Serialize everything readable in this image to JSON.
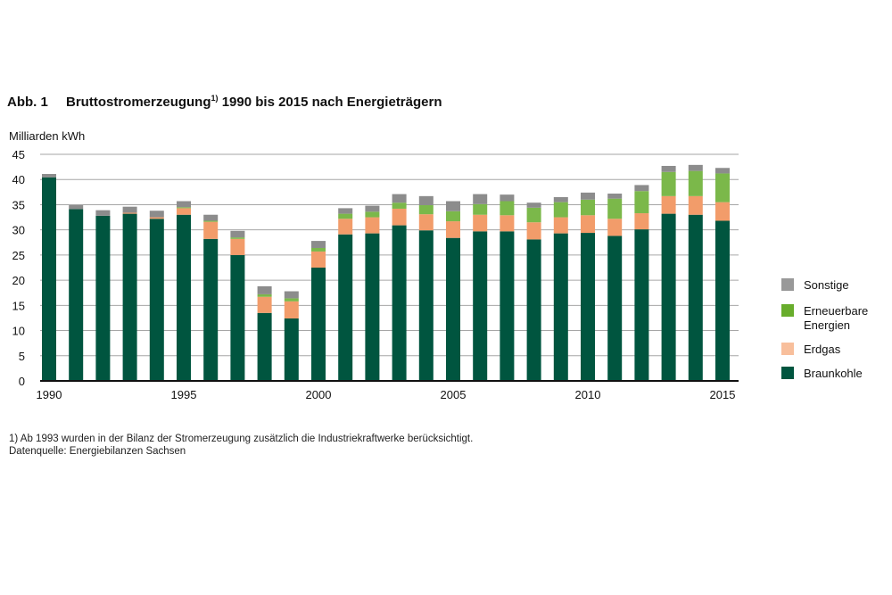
{
  "title": {
    "number": "Abb. 1",
    "main": "Bruttostromerzeugung",
    "footnote_marker": "1)",
    "rest": "1990 bis 2015 nach Energieträgern"
  },
  "footnotes": {
    "note": "1) Ab 1993 wurden in der Bilanz der Stromerzeugung zusätzlich die Industriekraftwerke berücksichtigt.",
    "source": "Datenquelle: Energiebilanzen Sachsen"
  },
  "chart_data": {
    "type": "bar",
    "stacked": true,
    "title": "Bruttostromerzeugung 1990 bis 2015 nach Energieträgern",
    "ylabel": "Milliarden kWh",
    "xlabel": "",
    "ylim": [
      0,
      45
    ],
    "yticks": [
      0,
      5,
      10,
      15,
      20,
      25,
      30,
      35,
      40,
      45
    ],
    "xtick_labels": [
      "1990",
      "1995",
      "2000",
      "2005",
      "2010",
      "2015"
    ],
    "grid": true,
    "legend_position": "right",
    "categories": [
      1990,
      1991,
      1992,
      1993,
      1994,
      1995,
      1996,
      1997,
      1998,
      1999,
      2000,
      2001,
      2002,
      2003,
      2004,
      2005,
      2006,
      2007,
      2008,
      2009,
      2010,
      2011,
      2012,
      2013,
      2014,
      2015
    ],
    "series": [
      {
        "name": "Braunkohle",
        "color": "#00553f",
        "legend_color": "#00553f",
        "values": [
          40.4,
          34.1,
          32.8,
          33.2,
          32.2,
          33.0,
          28.2,
          25.0,
          13.5,
          12.4,
          22.5,
          29.1,
          29.3,
          30.9,
          29.9,
          28.4,
          29.7,
          29.7,
          28.1,
          29.3,
          29.4,
          28.8,
          30.1,
          33.2,
          33.0,
          31.8
        ]
      },
      {
        "name": "Erdgas",
        "color": "#f29c6a",
        "legend_color": "#f8bf9c",
        "values": [
          0,
          0,
          0,
          0.2,
          0.3,
          1.3,
          3.4,
          3.2,
          3.2,
          3.4,
          3.2,
          3.1,
          3.2,
          3.3,
          3.2,
          3.3,
          3.3,
          3.2,
          3.4,
          3.2,
          3.5,
          3.4,
          3.2,
          3.5,
          3.7,
          3.7
        ]
      },
      {
        "name": "Erneuerbare Energien",
        "color": "#7bb84a",
        "legend_color": "#68ad2c",
        "values": [
          0,
          0,
          0,
          0,
          0,
          0.2,
          0.2,
          0.3,
          0.5,
          0.6,
          0.7,
          1.0,
          1.1,
          1.2,
          1.8,
          2.0,
          2.1,
          2.8,
          2.9,
          3.0,
          3.1,
          4.0,
          4.4,
          4.8,
          5.0,
          5.7
        ]
      },
      {
        "name": "Sonstige",
        "color": "#8c8c8c",
        "legend_color": "#999999",
        "values": [
          0.7,
          0.8,
          1.1,
          1.2,
          1.3,
          1.2,
          1.2,
          1.3,
          1.6,
          1.4,
          1.4,
          1.1,
          1.2,
          1.7,
          1.8,
          2.0,
          2.0,
          1.3,
          1.0,
          1.0,
          1.4,
          1.0,
          1.2,
          1.2,
          1.2,
          1.1
        ]
      }
    ],
    "legend": [
      {
        "label": "Sonstige"
      },
      {
        "label": "Erneuerbare",
        "label2": "Energien"
      },
      {
        "label": "Erdgas"
      },
      {
        "label": "Braunkohle"
      }
    ]
  }
}
